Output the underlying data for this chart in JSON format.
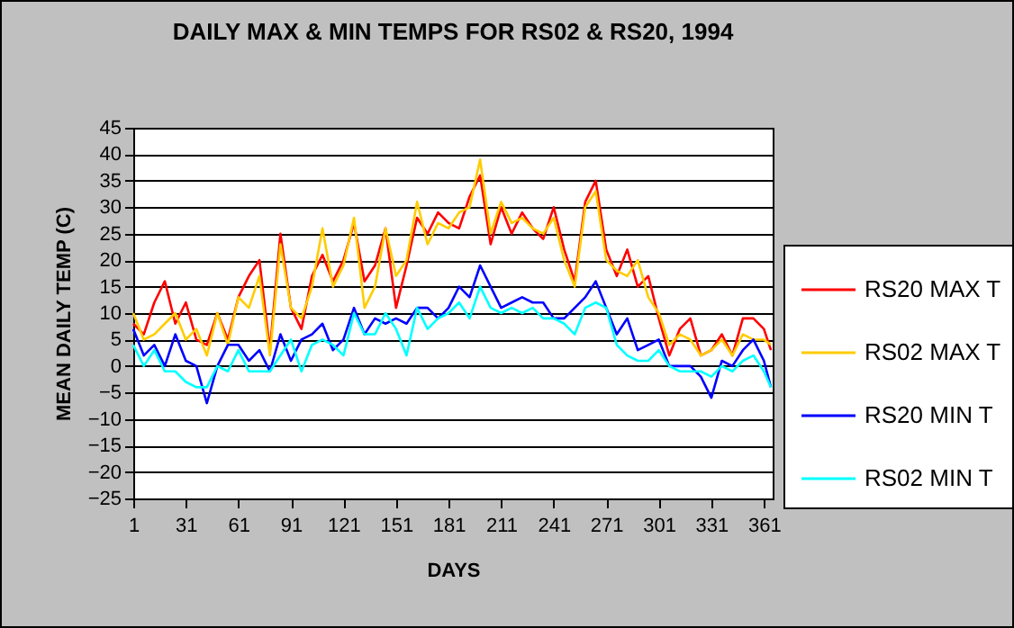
{
  "chart_data": {
    "type": "line",
    "title": "DAILY MAX & MIN TEMPS FOR RS02 & RS20, 1994",
    "xlabel": "DAYS",
    "ylabel": "MEAN DAILY TEMP (C)",
    "x": [
      1,
      7,
      13,
      19,
      25,
      31,
      37,
      43,
      49,
      55,
      61,
      67,
      73,
      79,
      85,
      91,
      97,
      103,
      109,
      115,
      121,
      127,
      133,
      139,
      145,
      151,
      157,
      163,
      169,
      175,
      181,
      187,
      193,
      199,
      205,
      211,
      217,
      223,
      229,
      235,
      241,
      247,
      253,
      259,
      265,
      271,
      277,
      283,
      289,
      295,
      301,
      307,
      313,
      319,
      325,
      331,
      337,
      343,
      349,
      355,
      361,
      365
    ],
    "series": [
      {
        "name": "RS20 MAX T",
        "color": "#ff0000",
        "values": [
          8,
          6,
          12,
          16,
          8,
          12,
          5,
          4,
          10,
          5,
          13,
          17,
          20,
          3,
          25,
          11,
          7,
          17,
          21,
          16,
          20,
          27,
          16,
          19,
          26,
          11,
          19,
          28,
          25,
          29,
          27,
          26,
          32,
          36,
          23,
          30,
          25,
          29,
          26,
          24,
          30,
          22,
          16,
          31,
          35,
          22,
          17,
          22,
          15,
          17,
          9,
          2,
          7,
          9,
          2,
          3,
          6,
          2,
          9,
          9,
          7,
          3
        ]
      },
      {
        "name": "RS02 MAX T",
        "color": "#ffcc00",
        "values": [
          10,
          5,
          6,
          8,
          10,
          5,
          7,
          2,
          10,
          4,
          13,
          11,
          17,
          2,
          23,
          11,
          9,
          15,
          26,
          15,
          19,
          28,
          11,
          15,
          26,
          17,
          20,
          31,
          23,
          27,
          26,
          29,
          30,
          39,
          25,
          31,
          27,
          28,
          26,
          25,
          28,
          20,
          15,
          30,
          33,
          20,
          18,
          17,
          20,
          13,
          10,
          4,
          6,
          5,
          2,
          3,
          5,
          2,
          6,
          5,
          5,
          4
        ]
      },
      {
        "name": "RS20 MIN T",
        "color": "#0000ff",
        "values": [
          7,
          2,
          4,
          0,
          6,
          1,
          0,
          -7,
          0,
          4,
          4,
          1,
          3,
          -1,
          6,
          1,
          5,
          6,
          8,
          3,
          5,
          11,
          6,
          9,
          8,
          9,
          8,
          11,
          11,
          9,
          11,
          15,
          13,
          19,
          15,
          11,
          12,
          13,
          12,
          12,
          9,
          9,
          11,
          13,
          16,
          11,
          6,
          9,
          3,
          4,
          5,
          0,
          0,
          0,
          -2,
          -6,
          1,
          0,
          3,
          5,
          1,
          -4
        ]
      },
      {
        "name": "RS02 MIN T",
        "color": "#00ffff",
        "values": [
          4,
          0,
          3,
          -1,
          -1,
          -3,
          -4,
          -4,
          0,
          -1,
          3,
          -1,
          -1,
          -1,
          2,
          5,
          -1,
          4,
          5,
          4,
          2,
          10,
          6,
          6,
          10,
          7,
          2,
          11,
          7,
          9,
          10,
          12,
          9,
          15,
          11,
          10,
          11,
          10,
          11,
          9,
          9,
          8,
          6,
          11,
          12,
          11,
          4,
          2,
          1,
          1,
          3,
          0,
          -1,
          -1,
          -1,
          -2,
          0,
          -1,
          1,
          2,
          -1,
          -4
        ]
      }
    ],
    "xlim": [
      1,
      366
    ],
    "xticks": [
      1,
      31,
      61,
      91,
      121,
      151,
      181,
      211,
      241,
      271,
      301,
      331,
      361
    ],
    "ylim": [
      -25,
      45
    ],
    "yticks": [
      -25,
      -20,
      -15,
      -10,
      -5,
      0,
      5,
      10,
      15,
      20,
      25,
      30,
      35,
      40,
      45
    ],
    "grid": "y",
    "legend": "right",
    "marker": "none",
    "line_style": "solid"
  }
}
